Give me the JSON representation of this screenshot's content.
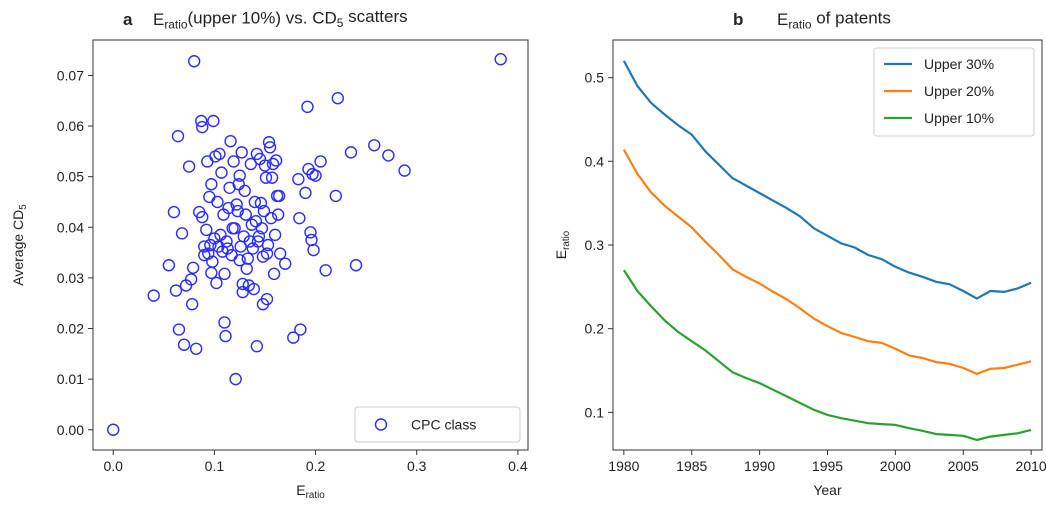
{
  "chart_data": [
    {
      "panel": "a",
      "type": "scatter",
      "title": {
        "pre": "E",
        "sub": "ratio",
        "post": "(upper 10%) vs. CD",
        "sub2": "5",
        "tail": " scatters"
      },
      "xlabel": {
        "base": "E",
        "sub": "ratio"
      },
      "ylabel": {
        "base": "Average CD",
        "sub": "5"
      },
      "xlim": [
        -0.02,
        0.41
      ],
      "ylim": [
        -0.004,
        0.077
      ],
      "xticks": [
        "0.0",
        "0.1",
        "0.2",
        "0.3",
        "0.4"
      ],
      "yticks": [
        "0.00",
        "0.01",
        "0.02",
        "0.03",
        "0.04",
        "0.05",
        "0.06",
        "0.07"
      ],
      "legend": {
        "position": "lower-right",
        "entries": [
          "CPC class"
        ]
      },
      "grid": false,
      "color": "#2b2bff",
      "series": [
        {
          "name": "CPC class",
          "points": [
            [
              0.0,
              0.0
            ],
            [
              0.04,
              0.0265
            ],
            [
              0.055,
              0.0325
            ],
            [
              0.06,
              0.043
            ],
            [
              0.062,
              0.0275
            ],
            [
              0.064,
              0.058
            ],
            [
              0.065,
              0.0198
            ],
            [
              0.068,
              0.0388
            ],
            [
              0.07,
              0.0168
            ],
            [
              0.072,
              0.0285
            ],
            [
              0.075,
              0.052
            ],
            [
              0.077,
              0.0297
            ],
            [
              0.078,
              0.0248
            ],
            [
              0.079,
              0.032
            ],
            [
              0.08,
              0.0728
            ],
            [
              0.082,
              0.016
            ],
            [
              0.085,
              0.043
            ],
            [
              0.087,
              0.061
            ],
            [
              0.088,
              0.0598
            ],
            [
              0.088,
              0.042
            ],
            [
              0.09,
              0.0362
            ],
            [
              0.09,
              0.0345
            ],
            [
              0.092,
              0.0395
            ],
            [
              0.093,
              0.053
            ],
            [
              0.094,
              0.0348
            ],
            [
              0.095,
              0.046
            ],
            [
              0.096,
              0.0365
            ],
            [
              0.097,
              0.0485
            ],
            [
              0.097,
              0.031
            ],
            [
              0.098,
              0.0332
            ],
            [
              0.099,
              0.061
            ],
            [
              0.1,
              0.0378
            ],
            [
              0.101,
              0.054
            ],
            [
              0.102,
              0.029
            ],
            [
              0.103,
              0.045
            ],
            [
              0.104,
              0.0362
            ],
            [
              0.105,
              0.0545
            ],
            [
              0.106,
              0.0385
            ],
            [
              0.107,
              0.0508
            ],
            [
              0.108,
              0.0352
            ],
            [
              0.109,
              0.0425
            ],
            [
              0.11,
              0.0308
            ],
            [
              0.11,
              0.0212
            ],
            [
              0.111,
              0.0185
            ],
            [
              0.112,
              0.0372
            ],
            [
              0.113,
              0.0358
            ],
            [
              0.114,
              0.0438
            ],
            [
              0.115,
              0.0478
            ],
            [
              0.116,
              0.057
            ],
            [
              0.117,
              0.0345
            ],
            [
              0.118,
              0.0398
            ],
            [
              0.119,
              0.053
            ],
            [
              0.12,
              0.0398
            ],
            [
              0.121,
              0.01
            ],
            [
              0.122,
              0.0445
            ],
            [
              0.123,
              0.0432
            ],
            [
              0.124,
              0.0485
            ],
            [
              0.125,
              0.0502
            ],
            [
              0.125,
              0.0335
            ],
            [
              0.126,
              0.0362
            ],
            [
              0.127,
              0.0548
            ],
            [
              0.128,
              0.0288
            ],
            [
              0.128,
              0.0272
            ],
            [
              0.129,
              0.0382
            ],
            [
              0.13,
              0.0472
            ],
            [
              0.131,
              0.0425
            ],
            [
              0.132,
              0.0318
            ],
            [
              0.133,
              0.0338
            ],
            [
              0.134,
              0.0285
            ],
            [
              0.135,
              0.0372
            ],
            [
              0.136,
              0.0525
            ],
            [
              0.137,
              0.0405
            ],
            [
              0.138,
              0.0358
            ],
            [
              0.139,
              0.0278
            ],
            [
              0.14,
              0.045
            ],
            [
              0.141,
              0.0412
            ],
            [
              0.142,
              0.0545
            ],
            [
              0.142,
              0.0165
            ],
            [
              0.143,
              0.0372
            ],
            [
              0.144,
              0.0382
            ],
            [
              0.145,
              0.0535
            ],
            [
              0.146,
              0.0448
            ],
            [
              0.147,
              0.0398
            ],
            [
              0.148,
              0.0342
            ],
            [
              0.148,
              0.0248
            ],
            [
              0.149,
              0.0432
            ],
            [
              0.15,
              0.0522
            ],
            [
              0.151,
              0.0498
            ],
            [
              0.152,
              0.0348
            ],
            [
              0.152,
              0.0258
            ],
            [
              0.153,
              0.0365
            ],
            [
              0.154,
              0.0568
            ],
            [
              0.155,
              0.0558
            ],
            [
              0.156,
              0.0418
            ],
            [
              0.157,
              0.0498
            ],
            [
              0.158,
              0.0525
            ],
            [
              0.159,
              0.0308
            ],
            [
              0.16,
              0.0385
            ],
            [
              0.161,
              0.0532
            ],
            [
              0.162,
              0.0462
            ],
            [
              0.163,
              0.0425
            ],
            [
              0.164,
              0.0462
            ],
            [
              0.165,
              0.0348
            ],
            [
              0.17,
              0.0328
            ],
            [
              0.178,
              0.0182
            ],
            [
              0.183,
              0.0495
            ],
            [
              0.184,
              0.0418
            ],
            [
              0.185,
              0.0198
            ],
            [
              0.19,
              0.0468
            ],
            [
              0.192,
              0.0638
            ],
            [
              0.193,
              0.0515
            ],
            [
              0.195,
              0.039
            ],
            [
              0.196,
              0.0375
            ],
            [
              0.197,
              0.0505
            ],
            [
              0.198,
              0.0355
            ],
            [
              0.2,
              0.0502
            ],
            [
              0.205,
              0.053
            ],
            [
              0.21,
              0.0315
            ],
            [
              0.22,
              0.0462
            ],
            [
              0.222,
              0.0655
            ],
            [
              0.235,
              0.0548
            ],
            [
              0.24,
              0.0325
            ],
            [
              0.258,
              0.0562
            ],
            [
              0.272,
              0.0542
            ],
            [
              0.288,
              0.0512
            ],
            [
              0.383,
              0.0732
            ]
          ]
        }
      ]
    },
    {
      "panel": "b",
      "type": "line",
      "title": {
        "pre": "E",
        "sub": "ratio",
        "post": " of patents"
      },
      "xlabel": {
        "base": "Year",
        "sub": ""
      },
      "ylabel": {
        "base": "E",
        "sub": "ratio"
      },
      "xlim": [
        1979.2,
        2010.8
      ],
      "ylim": [
        0.055,
        0.545
      ],
      "xticks": [
        "1980",
        "1985",
        "1990",
        "1995",
        "2000",
        "2005",
        "2010"
      ],
      "yticks": [
        "0.1",
        "0.2",
        "0.3",
        "0.4",
        "0.5"
      ],
      "legend": {
        "position": "top-right",
        "entries": [
          "Upper 30%",
          "Upper 20%",
          "Upper 10%"
        ]
      },
      "grid": false,
      "x": [
        1980,
        1981,
        1982,
        1983,
        1984,
        1985,
        1986,
        1987,
        1988,
        1989,
        1990,
        1991,
        1992,
        1993,
        1994,
        1995,
        1996,
        1997,
        1998,
        1999,
        2000,
        2001,
        2002,
        2003,
        2004,
        2005,
        2006,
        2007,
        2008,
        2009,
        2010
      ],
      "series": [
        {
          "name": "Upper 30%",
          "color": "#1f77b4",
          "values": [
            0.52,
            0.49,
            0.47,
            0.456,
            0.443,
            0.432,
            0.412,
            0.396,
            0.38,
            0.371,
            0.362,
            0.353,
            0.344,
            0.334,
            0.32,
            0.311,
            0.302,
            0.297,
            0.288,
            0.283,
            0.274,
            0.267,
            0.262,
            0.256,
            0.253,
            0.245,
            0.236,
            0.245,
            0.244,
            0.248,
            0.255
          ]
        },
        {
          "name": "Upper 20%",
          "color": "#ff7f0e",
          "values": [
            0.414,
            0.385,
            0.363,
            0.347,
            0.334,
            0.321,
            0.304,
            0.288,
            0.271,
            0.262,
            0.254,
            0.244,
            0.235,
            0.224,
            0.212,
            0.203,
            0.195,
            0.19,
            0.185,
            0.183,
            0.176,
            0.168,
            0.165,
            0.16,
            0.158,
            0.153,
            0.146,
            0.152,
            0.153,
            0.157,
            0.161
          ]
        },
        {
          "name": "Upper 10%",
          "color": "#2ca02c",
          "values": [
            0.27,
            0.245,
            0.227,
            0.21,
            0.196,
            0.185,
            0.174,
            0.161,
            0.148,
            0.141,
            0.135,
            0.127,
            0.119,
            0.111,
            0.103,
            0.097,
            0.093,
            0.09,
            0.087,
            0.086,
            0.085,
            0.081,
            0.078,
            0.074,
            0.073,
            0.072,
            0.067,
            0.071,
            0.073,
            0.075,
            0.079
          ]
        }
      ]
    }
  ]
}
